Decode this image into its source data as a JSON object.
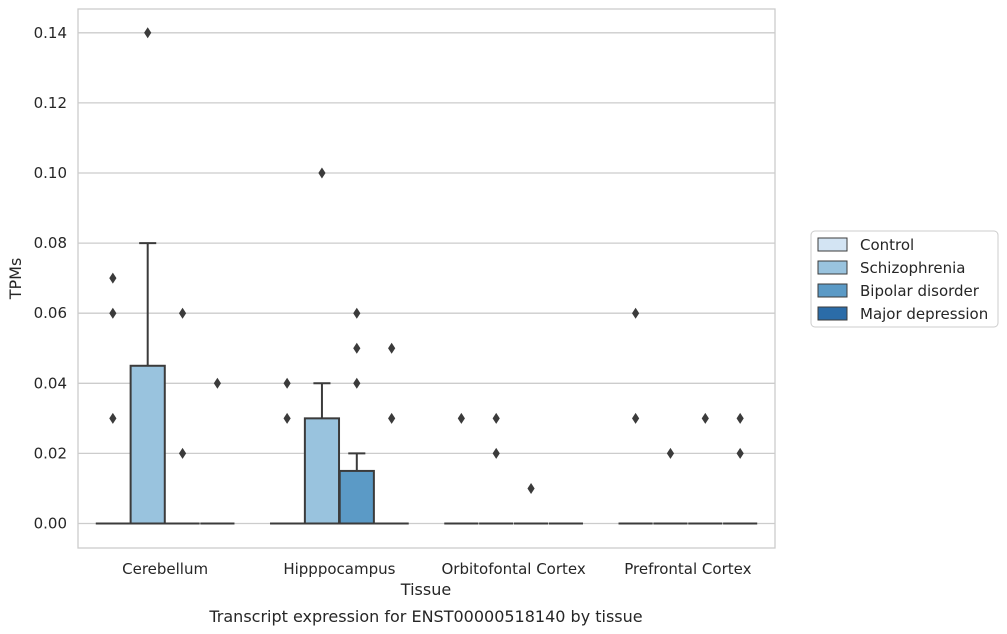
{
  "chart_data": {
    "type": "box",
    "title": "",
    "caption": "Transcript expression for ENST00000518140 by tissue",
    "xlabel": "Tissue",
    "ylabel": "TPMs",
    "ylim": [
      -0.007,
      0.147
    ],
    "yticks": [
      "0.00",
      "0.02",
      "0.04",
      "0.06",
      "0.08",
      "0.10",
      "0.12",
      "0.14"
    ],
    "grid": true,
    "legend_position": "right",
    "categories": [
      "Cerebellum",
      "Hipppocampus",
      "Orbitofontal Cortex",
      "Prefrontal Cortex"
    ],
    "series": [
      {
        "name": "Control",
        "color": "#d3e4f3",
        "boxes": [
          {
            "q1": 0,
            "median": 0,
            "q3": 0,
            "whisker_low": 0,
            "whisker_high": 0,
            "outliers": [
              0.03,
              0.06,
              0.07
            ]
          },
          {
            "q1": 0,
            "median": 0,
            "q3": 0,
            "whisker_low": 0,
            "whisker_high": 0,
            "outliers": [
              0.03,
              0.04
            ]
          },
          {
            "q1": 0,
            "median": 0,
            "q3": 0,
            "whisker_low": 0,
            "whisker_high": 0,
            "outliers": [
              0.03
            ]
          },
          {
            "q1": 0,
            "median": 0,
            "q3": 0,
            "whisker_low": 0,
            "whisker_high": 0,
            "outliers": [
              0.03,
              0.06
            ]
          }
        ]
      },
      {
        "name": "Schizophrenia",
        "color": "#99c3de",
        "boxes": [
          {
            "q1": 0,
            "median": 0,
            "q3": 0.045,
            "whisker_low": 0,
            "whisker_high": 0.08,
            "outliers": [
              0.14
            ]
          },
          {
            "q1": 0,
            "median": 0,
            "q3": 0.03,
            "whisker_low": 0,
            "whisker_high": 0.04,
            "outliers": [
              0.1
            ]
          },
          {
            "q1": 0,
            "median": 0,
            "q3": 0,
            "whisker_low": 0,
            "whisker_high": 0,
            "outliers": [
              0.02,
              0.03
            ]
          },
          {
            "q1": 0,
            "median": 0,
            "q3": 0,
            "whisker_low": 0,
            "whisker_high": 0,
            "outliers": [
              0.02
            ]
          }
        ]
      },
      {
        "name": "Bipolar disorder",
        "color": "#5b9ac6",
        "boxes": [
          {
            "q1": 0,
            "median": 0,
            "q3": 0,
            "whisker_low": 0,
            "whisker_high": 0,
            "outliers": [
              0.02,
              0.06
            ]
          },
          {
            "q1": 0,
            "median": 0,
            "q3": 0.015,
            "whisker_low": 0,
            "whisker_high": 0.02,
            "outliers": [
              0.04,
              0.05,
              0.06
            ]
          },
          {
            "q1": 0,
            "median": 0,
            "q3": 0,
            "whisker_low": 0,
            "whisker_high": 0,
            "outliers": [
              0.01
            ]
          },
          {
            "q1": 0,
            "median": 0,
            "q3": 0,
            "whisker_low": 0,
            "whisker_high": 0,
            "outliers": [
              0.03
            ]
          }
        ]
      },
      {
        "name": "Major depression",
        "color": "#2b6ca8",
        "boxes": [
          {
            "q1": 0,
            "median": 0,
            "q3": 0,
            "whisker_low": 0,
            "whisker_high": 0,
            "outliers": [
              0.04
            ]
          },
          {
            "q1": 0,
            "median": 0,
            "q3": 0,
            "whisker_low": 0,
            "whisker_high": 0,
            "outliers": [
              0.03,
              0.05
            ]
          },
          {
            "q1": 0,
            "median": 0,
            "q3": 0,
            "whisker_low": 0,
            "whisker_high": 0,
            "outliers": []
          },
          {
            "q1": 0,
            "median": 0,
            "q3": 0,
            "whisker_low": 0,
            "whisker_high": 0,
            "outliers": [
              0.02,
              0.03
            ]
          }
        ]
      }
    ]
  }
}
